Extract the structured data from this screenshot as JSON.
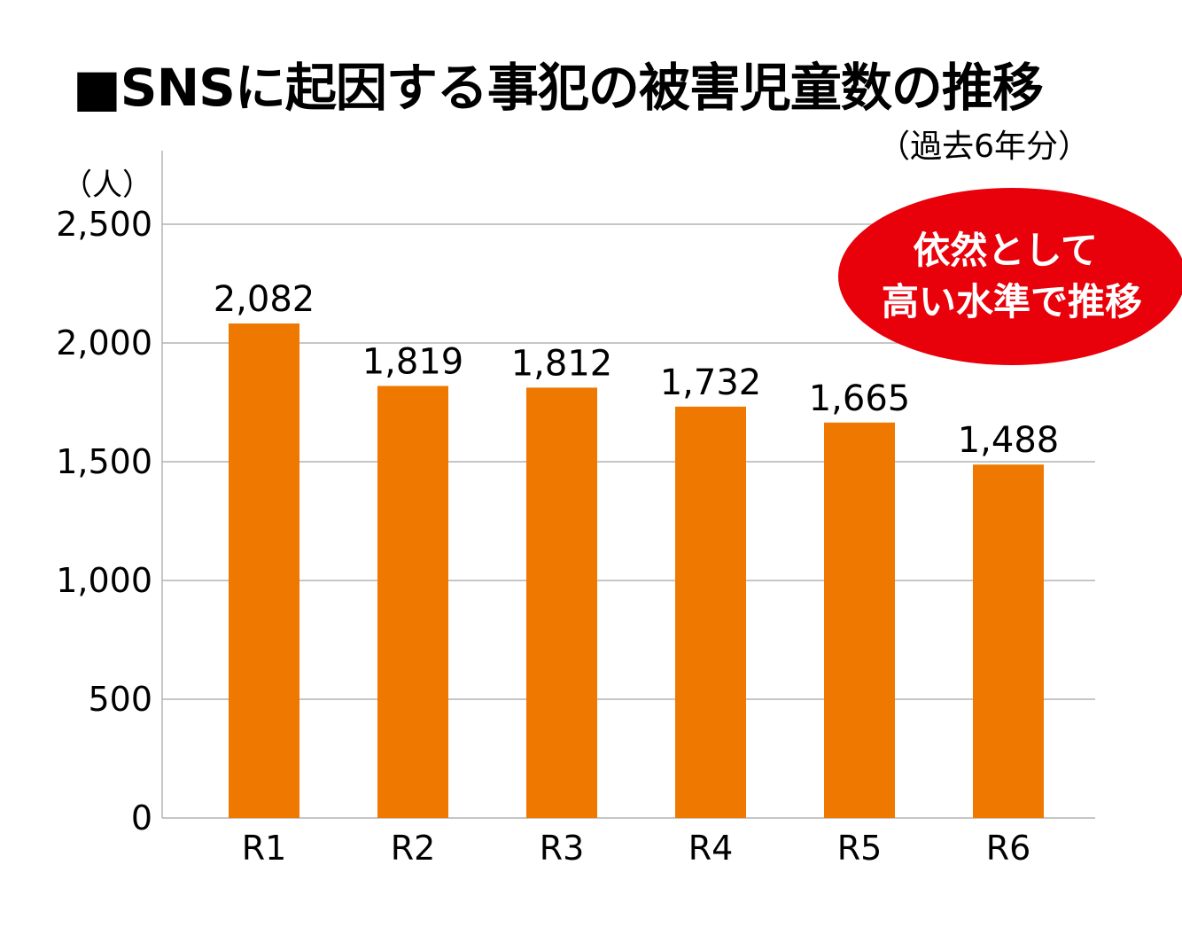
{
  "title": "■SNSに起因する事犯の被害児童数の推移",
  "subtitle": "（過去6年分）",
  "callout": {
    "line1": "依然として",
    "line2": "高い水準で推移",
    "color": "#e8000b"
  },
  "chart_data": {
    "type": "bar",
    "categories": [
      "R1",
      "R2",
      "R3",
      "R4",
      "R5",
      "R6"
    ],
    "values": [
      2082,
      1819,
      1812,
      1732,
      1665,
      1488
    ],
    "value_labels": [
      "2,082",
      "1,819",
      "1,812",
      "1,732",
      "1,665",
      "1,488"
    ],
    "ylabel": "（人）",
    "ylim": [
      0,
      2500
    ],
    "yticks": [
      0,
      500,
      1000,
      1500,
      2000,
      2500
    ],
    "ytick_labels": [
      "0",
      "500",
      "1,000",
      "1,500",
      "2,000",
      "2,500"
    ],
    "grid": true,
    "bar_color": "#ee7800"
  }
}
